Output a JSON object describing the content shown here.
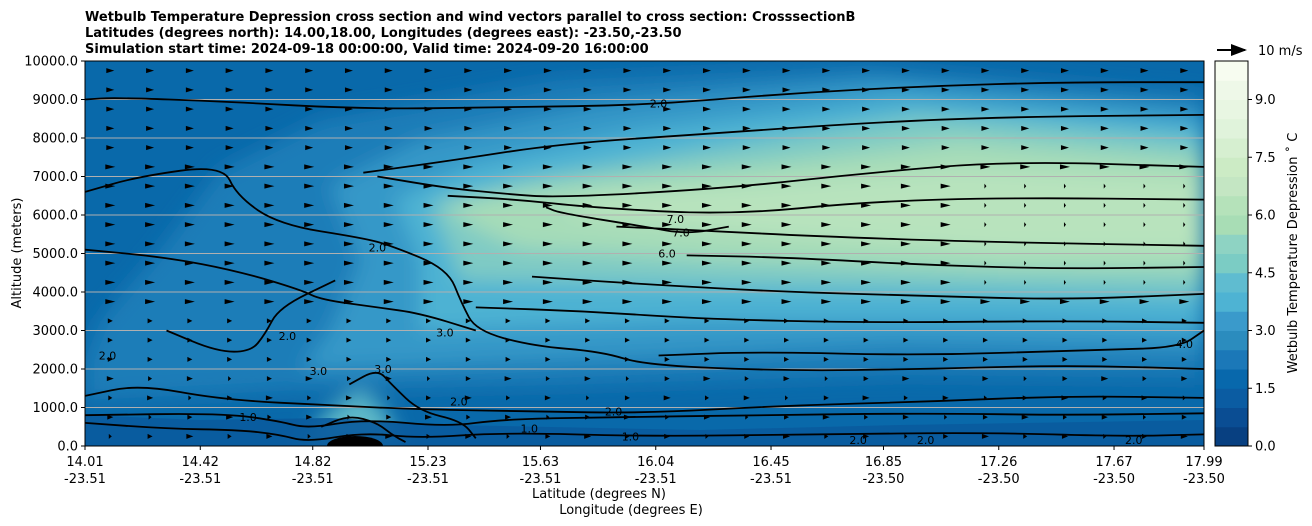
{
  "chart_data": {
    "type": "contour",
    "title": [
      "Wetbulb Temperature Depression cross section and wind vectors parallel to cross section: CrosssectionB",
      "Latitudes (degrees north): 14.00,18.00, Longitudes (degrees east): -23.50,-23.50",
      "Simulation start time: 2024-09-18 00:00:00, Valid time: 2024-09-20 16:00:00"
    ],
    "xlabel": "Latitude (degrees N)",
    "xlabel2": "Longitude (degrees E)",
    "ylabel": "Altitude (meters)",
    "ylim": [
      0,
      10000
    ],
    "yticks": [
      "0.0",
      "1000.0",
      "2000.0",
      "3000.0",
      "4000.0",
      "5000.0",
      "6000.0",
      "7000.0",
      "8000.0",
      "9000.0",
      "10000.0"
    ],
    "xticks": [
      {
        "lat": "14.01",
        "lon": "-23.51"
      },
      {
        "lat": "14.42",
        "lon": "-23.51"
      },
      {
        "lat": "14.82",
        "lon": "-23.51"
      },
      {
        "lat": "15.23",
        "lon": "-23.51"
      },
      {
        "lat": "15.63",
        "lon": "-23.51"
      },
      {
        "lat": "16.04",
        "lon": "-23.51"
      },
      {
        "lat": "16.45",
        "lon": "-23.51"
      },
      {
        "lat": "16.85",
        "lon": "-23.50"
      },
      {
        "lat": "17.26",
        "lon": "-23.50"
      },
      {
        "lat": "17.67",
        "lon": "-23.50"
      },
      {
        "lat": "17.99",
        "lon": "-23.50"
      }
    ],
    "colorbar": {
      "label": "Wetbulb Temperature Depression $^\\circ$C",
      "label_display": "Wetbulb Temperature Depression ˚ C",
      "range": [
        0,
        10
      ],
      "step": 0.5,
      "ticks": [
        "0.0",
        "1.5",
        "3.0",
        "4.5",
        "6.0",
        "7.5",
        "9.0"
      ],
      "cmap": "GnBu_r"
    },
    "contour_levels": [
      1.0,
      2.0,
      3.0,
      4.0,
      5.0,
      6.0,
      7.0
    ],
    "contour_labels": [
      {
        "text": "2.0",
        "x": 16.05,
        "y": 8850
      },
      {
        "text": "7.0",
        "x": 16.11,
        "y": 5850
      },
      {
        "text": "7.0",
        "x": 16.13,
        "y": 5500
      },
      {
        "text": "6.0",
        "x": 16.08,
        "y": 4950
      },
      {
        "text": "2.0",
        "x": 15.05,
        "y": 5100
      },
      {
        "text": "2.0",
        "x": 14.09,
        "y": 2300
      },
      {
        "text": "2.0",
        "x": 14.73,
        "y": 2800
      },
      {
        "text": "3.0",
        "x": 14.84,
        "y": 1900
      },
      {
        "text": "3.0",
        "x": 15.07,
        "y": 1950
      },
      {
        "text": "3.0",
        "x": 15.29,
        "y": 2900
      },
      {
        "text": "2.0",
        "x": 15.34,
        "y": 1100
      },
      {
        "text": "1.0",
        "x": 14.59,
        "y": 700
      },
      {
        "text": "2.0",
        "x": 15.89,
        "y": 850
      },
      {
        "text": "1.0",
        "x": 15.95,
        "y": 200
      },
      {
        "text": "1.0",
        "x": 15.59,
        "y": 400
      },
      {
        "text": "4.0",
        "x": 17.92,
        "y": 2600
      },
      {
        "text": "2.0",
        "x": 17.74,
        "y": 100
      },
      {
        "text": "2.0",
        "x": 17.0,
        "y": 100
      },
      {
        "text": "2.0",
        "x": 16.76,
        "y": 100
      }
    ],
    "grid": "horizontal"
  },
  "wind_legend": {
    "label": "10 m/s",
    "reference_speed": 10
  }
}
